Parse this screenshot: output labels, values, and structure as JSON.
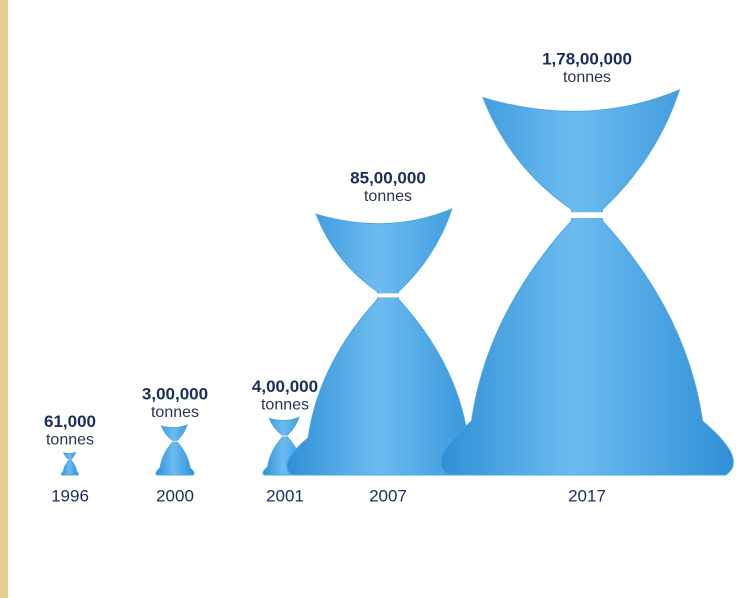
{
  "chart_data": {
    "type": "pictogram",
    "categories": [
      "1996",
      "2000",
      "2001",
      "2007",
      "2017"
    ],
    "values": [
      61000,
      300000,
      400000,
      8500000,
      17800000
    ],
    "value_labels": [
      "61,000",
      "3,00,000",
      "4,00,000",
      "85,00,000",
      "1,78,00,000"
    ],
    "unit": "tonnes",
    "color": "#4aa6e4"
  }
}
